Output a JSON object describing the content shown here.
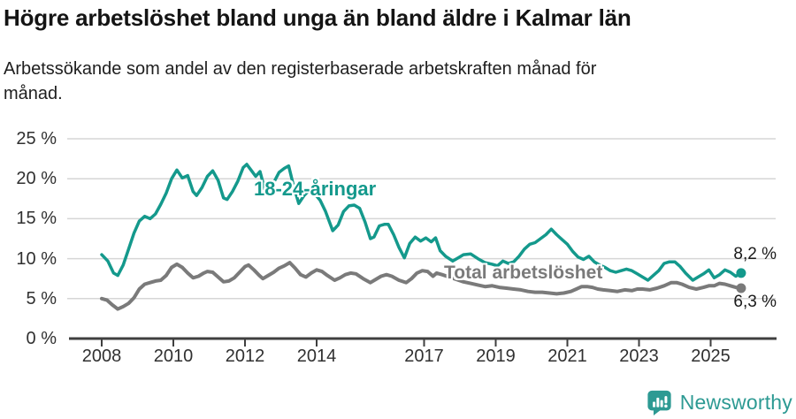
{
  "title": "Högre arbetslöshet bland unga än bland äldre i Kalmar län",
  "subtitle": "Arbetssökande som andel av den registerbaserade arbetskraften månad för månad.",
  "colors": {
    "young_line": "#14998c",
    "total_line": "#7a7a7a",
    "grid": "#d6d6d6",
    "axis": "#3f3f3f",
    "tick_text": "#303030",
    "logo_teal": "#2d9a93"
  },
  "annotations": {
    "young_label": "18-24-åringar",
    "total_label": "Total arbetslöshet",
    "young_end_value": "8,2 %",
    "total_end_value": "6,3 %"
  },
  "logo": {
    "text": "Newsworthy",
    "icon": "speech-bubble-bar-chart-icon"
  },
  "chart_data": {
    "type": "line",
    "x_unit": "decimal_year",
    "xlim": [
      2007.6,
      2026.4
    ],
    "ylim": [
      0,
      25
    ],
    "grid": "horizontal-only",
    "yticks": [
      {
        "value": 25,
        "label": "25 %"
      },
      {
        "value": 20,
        "label": "20 %"
      },
      {
        "value": 15,
        "label": "15 %"
      },
      {
        "value": 10,
        "label": "10 %"
      },
      {
        "value": 5,
        "label": "5 %"
      },
      {
        "value": 0,
        "label": "0 %"
      }
    ],
    "xticks": [
      {
        "value": 2008,
        "label": "2008"
      },
      {
        "value": 2010,
        "label": "2010"
      },
      {
        "value": 2012,
        "label": "2012"
      },
      {
        "value": 2014,
        "label": "2014"
      },
      {
        "value": 2017,
        "label": "2017"
      },
      {
        "value": 2019,
        "label": "2019"
      },
      {
        "value": 2021,
        "label": "2021"
      },
      {
        "value": 2023,
        "label": "2023"
      },
      {
        "value": 2025,
        "label": "2025"
      }
    ],
    "series": [
      {
        "name": "Total arbetslöshet",
        "color": "#7a7a7a",
        "stroke_width": 4,
        "end_label": "6,3 %",
        "points": [
          [
            2008.0,
            5.0
          ],
          [
            2008.15,
            4.8
          ],
          [
            2008.3,
            4.2
          ],
          [
            2008.45,
            3.7
          ],
          [
            2008.6,
            4.0
          ],
          [
            2008.75,
            4.4
          ],
          [
            2008.9,
            5.1
          ],
          [
            2009.05,
            6.2
          ],
          [
            2009.2,
            6.8
          ],
          [
            2009.35,
            7.0
          ],
          [
            2009.5,
            7.2
          ],
          [
            2009.65,
            7.3
          ],
          [
            2009.8,
            7.9
          ],
          [
            2009.95,
            8.9
          ],
          [
            2010.1,
            9.3
          ],
          [
            2010.25,
            8.9
          ],
          [
            2010.4,
            8.2
          ],
          [
            2010.55,
            7.6
          ],
          [
            2010.7,
            7.8
          ],
          [
            2010.85,
            8.2
          ],
          [
            2010.95,
            8.4
          ],
          [
            2011.1,
            8.3
          ],
          [
            2011.25,
            7.7
          ],
          [
            2011.4,
            7.1
          ],
          [
            2011.55,
            7.2
          ],
          [
            2011.7,
            7.6
          ],
          [
            2011.85,
            8.3
          ],
          [
            2012.0,
            9.0
          ],
          [
            2012.1,
            9.2
          ],
          [
            2012.25,
            8.6
          ],
          [
            2012.4,
            7.9
          ],
          [
            2012.5,
            7.5
          ],
          [
            2012.65,
            7.9
          ],
          [
            2012.8,
            8.3
          ],
          [
            2012.95,
            8.8
          ],
          [
            2013.1,
            9.1
          ],
          [
            2013.25,
            9.5
          ],
          [
            2013.4,
            8.8
          ],
          [
            2013.55,
            8.0
          ],
          [
            2013.7,
            7.7
          ],
          [
            2013.85,
            8.2
          ],
          [
            2014.0,
            8.6
          ],
          [
            2014.15,
            8.4
          ],
          [
            2014.3,
            7.9
          ],
          [
            2014.5,
            7.3
          ],
          [
            2014.65,
            7.6
          ],
          [
            2014.8,
            8.0
          ],
          [
            2014.95,
            8.2
          ],
          [
            2015.1,
            8.1
          ],
          [
            2015.3,
            7.5
          ],
          [
            2015.5,
            7.0
          ],
          [
            2015.65,
            7.4
          ],
          [
            2015.8,
            7.8
          ],
          [
            2015.95,
            8.0
          ],
          [
            2016.1,
            7.8
          ],
          [
            2016.3,
            7.3
          ],
          [
            2016.5,
            7.0
          ],
          [
            2016.65,
            7.5
          ],
          [
            2016.8,
            8.2
          ],
          [
            2016.95,
            8.5
          ],
          [
            2017.1,
            8.4
          ],
          [
            2017.25,
            7.8
          ],
          [
            2017.35,
            8.2
          ],
          [
            2017.5,
            8.0
          ],
          [
            2017.7,
            7.7
          ],
          [
            2017.9,
            7.4
          ],
          [
            2018.1,
            7.1
          ],
          [
            2018.3,
            6.9
          ],
          [
            2018.5,
            6.7
          ],
          [
            2018.7,
            6.5
          ],
          [
            2018.9,
            6.6
          ],
          [
            2019.1,
            6.4
          ],
          [
            2019.3,
            6.3
          ],
          [
            2019.5,
            6.2
          ],
          [
            2019.7,
            6.1
          ],
          [
            2019.9,
            5.9
          ],
          [
            2020.1,
            5.8
          ],
          [
            2020.3,
            5.8
          ],
          [
            2020.5,
            5.7
          ],
          [
            2020.7,
            5.6
          ],
          [
            2020.9,
            5.7
          ],
          [
            2021.1,
            5.9
          ],
          [
            2021.25,
            6.2
          ],
          [
            2021.4,
            6.5
          ],
          [
            2021.55,
            6.5
          ],
          [
            2021.7,
            6.4
          ],
          [
            2021.85,
            6.2
          ],
          [
            2022.0,
            6.1
          ],
          [
            2022.2,
            6.0
          ],
          [
            2022.4,
            5.9
          ],
          [
            2022.6,
            6.1
          ],
          [
            2022.8,
            6.0
          ],
          [
            2022.95,
            6.2
          ],
          [
            2023.1,
            6.2
          ],
          [
            2023.3,
            6.1
          ],
          [
            2023.5,
            6.3
          ],
          [
            2023.7,
            6.6
          ],
          [
            2023.9,
            7.0
          ],
          [
            2024.05,
            7.0
          ],
          [
            2024.2,
            6.8
          ],
          [
            2024.4,
            6.4
          ],
          [
            2024.6,
            6.2
          ],
          [
            2024.8,
            6.4
          ],
          [
            2024.95,
            6.6
          ],
          [
            2025.1,
            6.6
          ],
          [
            2025.25,
            6.9
          ],
          [
            2025.4,
            6.8
          ],
          [
            2025.55,
            6.6
          ],
          [
            2025.7,
            6.4
          ],
          [
            2025.85,
            6.3
          ]
        ]
      },
      {
        "name": "18-24-åringar",
        "color": "#14998c",
        "stroke_width": 3.5,
        "end_label": "8,2 %",
        "points": [
          [
            2008.0,
            10.5
          ],
          [
            2008.17,
            9.7
          ],
          [
            2008.33,
            8.2
          ],
          [
            2008.45,
            7.9
          ],
          [
            2008.6,
            9.2
          ],
          [
            2008.75,
            11.2
          ],
          [
            2008.9,
            13.2
          ],
          [
            2009.05,
            14.7
          ],
          [
            2009.2,
            15.3
          ],
          [
            2009.35,
            15.0
          ],
          [
            2009.5,
            15.6
          ],
          [
            2009.65,
            16.8
          ],
          [
            2009.8,
            18.2
          ],
          [
            2009.95,
            20.0
          ],
          [
            2010.1,
            21.1
          ],
          [
            2010.25,
            20.1
          ],
          [
            2010.4,
            20.4
          ],
          [
            2010.55,
            18.4
          ],
          [
            2010.65,
            17.9
          ],
          [
            2010.8,
            18.9
          ],
          [
            2010.95,
            20.3
          ],
          [
            2011.1,
            21.0
          ],
          [
            2011.25,
            19.8
          ],
          [
            2011.4,
            17.6
          ],
          [
            2011.5,
            17.4
          ],
          [
            2011.65,
            18.4
          ],
          [
            2011.8,
            19.7
          ],
          [
            2011.95,
            21.4
          ],
          [
            2012.05,
            21.8
          ],
          [
            2012.2,
            20.9
          ],
          [
            2012.3,
            20.3
          ],
          [
            2012.42,
            20.9
          ],
          [
            2012.55,
            18.7
          ],
          [
            2012.65,
            18.1
          ],
          [
            2012.8,
            19.5
          ],
          [
            2012.95,
            20.8
          ],
          [
            2013.1,
            21.3
          ],
          [
            2013.22,
            21.6
          ],
          [
            2013.35,
            19.2
          ],
          [
            2013.5,
            16.9
          ],
          [
            2013.65,
            17.9
          ],
          [
            2013.8,
            18.6
          ],
          [
            2013.95,
            18.1
          ],
          [
            2014.1,
            17.3
          ],
          [
            2014.25,
            15.9
          ],
          [
            2014.45,
            13.5
          ],
          [
            2014.6,
            14.2
          ],
          [
            2014.75,
            15.9
          ],
          [
            2014.9,
            16.6
          ],
          [
            2015.05,
            16.7
          ],
          [
            2015.2,
            16.3
          ],
          [
            2015.35,
            14.6
          ],
          [
            2015.5,
            12.5
          ],
          [
            2015.6,
            12.7
          ],
          [
            2015.75,
            14.1
          ],
          [
            2015.9,
            14.3
          ],
          [
            2016.0,
            14.3
          ],
          [
            2016.15,
            13.0
          ],
          [
            2016.3,
            11.4
          ],
          [
            2016.45,
            10.1
          ],
          [
            2016.6,
            11.9
          ],
          [
            2016.75,
            12.7
          ],
          [
            2016.9,
            12.2
          ],
          [
            2017.05,
            12.6
          ],
          [
            2017.2,
            12.1
          ],
          [
            2017.32,
            12.6
          ],
          [
            2017.45,
            11.0
          ],
          [
            2017.6,
            10.3
          ],
          [
            2017.8,
            9.7
          ],
          [
            2017.95,
            10.1
          ],
          [
            2018.1,
            10.5
          ],
          [
            2018.3,
            10.6
          ],
          [
            2018.5,
            10.0
          ],
          [
            2018.7,
            9.5
          ],
          [
            2018.9,
            9.3
          ],
          [
            2019.05,
            9.1
          ],
          [
            2019.2,
            9.7
          ],
          [
            2019.35,
            9.4
          ],
          [
            2019.5,
            9.6
          ],
          [
            2019.65,
            10.3
          ],
          [
            2019.8,
            11.2
          ],
          [
            2019.95,
            11.8
          ],
          [
            2020.1,
            12.0
          ],
          [
            2020.25,
            12.5
          ],
          [
            2020.4,
            13.0
          ],
          [
            2020.55,
            13.7
          ],
          [
            2020.7,
            13.0
          ],
          [
            2020.85,
            12.4
          ],
          [
            2021.0,
            11.8
          ],
          [
            2021.15,
            10.9
          ],
          [
            2021.3,
            10.2
          ],
          [
            2021.45,
            9.9
          ],
          [
            2021.6,
            10.3
          ],
          [
            2021.75,
            9.6
          ],
          [
            2021.9,
            9.2
          ],
          [
            2022.05,
            8.9
          ],
          [
            2022.2,
            8.5
          ],
          [
            2022.35,
            8.3
          ],
          [
            2022.5,
            8.5
          ],
          [
            2022.65,
            8.7
          ],
          [
            2022.8,
            8.5
          ],
          [
            2022.95,
            8.1
          ],
          [
            2023.1,
            7.7
          ],
          [
            2023.25,
            7.3
          ],
          [
            2023.4,
            7.9
          ],
          [
            2023.55,
            8.5
          ],
          [
            2023.7,
            9.4
          ],
          [
            2023.85,
            9.6
          ],
          [
            2024.0,
            9.6
          ],
          [
            2024.15,
            9.0
          ],
          [
            2024.3,
            8.2
          ],
          [
            2024.5,
            7.3
          ],
          [
            2024.65,
            7.7
          ],
          [
            2024.8,
            8.1
          ],
          [
            2024.95,
            8.6
          ],
          [
            2025.1,
            7.6
          ],
          [
            2025.25,
            8.0
          ],
          [
            2025.4,
            8.6
          ],
          [
            2025.55,
            8.3
          ],
          [
            2025.7,
            7.8
          ],
          [
            2025.85,
            8.2
          ]
        ]
      }
    ]
  }
}
